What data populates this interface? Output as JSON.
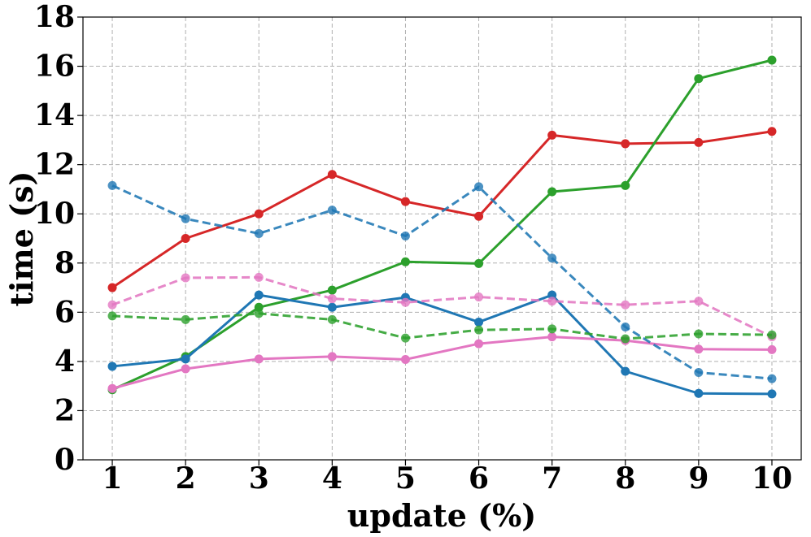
{
  "chart_data": {
    "type": "line",
    "title": "",
    "xlabel": "update (%)",
    "ylabel": "time (s)",
    "x": [
      1,
      2,
      3,
      4,
      5,
      6,
      7,
      8,
      9,
      10
    ],
    "xlim": [
      0.6,
      10.4
    ],
    "ylim": [
      0,
      18
    ],
    "yticks": [
      0,
      2,
      4,
      6,
      8,
      10,
      12,
      14,
      16,
      18
    ],
    "grid": true,
    "legend": "none",
    "series": [
      {
        "color": "#d62728",
        "style": "solid",
        "values": [
          7.0,
          9.0,
          10.0,
          11.6,
          10.5,
          9.9,
          13.2,
          12.85,
          12.9,
          13.35
        ]
      },
      {
        "color": "#2ca02c",
        "style": "solid",
        "values": [
          2.85,
          4.2,
          6.2,
          6.9,
          8.05,
          7.98,
          10.9,
          11.15,
          15.5,
          16.25
        ]
      },
      {
        "color": "#1f77b4",
        "style": "solid",
        "values": [
          3.8,
          4.1,
          6.7,
          6.2,
          6.6,
          5.6,
          6.7,
          3.6,
          2.7,
          2.68
        ]
      },
      {
        "color": "#e377c2",
        "style": "solid",
        "values": [
          2.9,
          3.7,
          4.1,
          4.2,
          4.08,
          4.72,
          5.0,
          4.85,
          4.5,
          4.48
        ]
      },
      {
        "color": "#1f77b4",
        "style": "dashed",
        "values": [
          11.15,
          9.8,
          9.2,
          10.15,
          9.1,
          11.1,
          8.2,
          5.4,
          3.55,
          3.3
        ]
      },
      {
        "color": "#e377c2",
        "style": "dashed",
        "values": [
          6.3,
          7.4,
          7.42,
          6.55,
          6.4,
          6.62,
          6.45,
          6.3,
          6.45,
          5.0
        ]
      },
      {
        "color": "#2ca02c",
        "style": "dashed",
        "values": [
          5.85,
          5.7,
          5.95,
          5.7,
          4.95,
          5.28,
          5.32,
          4.92,
          5.12,
          5.08
        ]
      }
    ]
  }
}
